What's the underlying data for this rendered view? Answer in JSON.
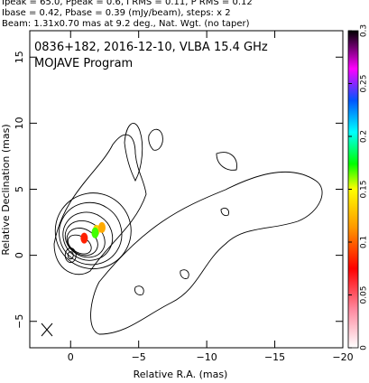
{
  "header": {
    "line1": "Ipeak = 65.0, Ppeak = 0.6, I RMS = 0.11, P RMS = 0.12",
    "line2": "Ibase = 0.42, Pbase = 0.39 (mJy/beam), steps: x 2",
    "line3": "Beam: 1.31x0.70 mas at 9.2 deg., Nat. Wgt. (no taper)"
  },
  "chart_data": {
    "type": "contour",
    "title_line1": "0836+182, 2016-12-10, VLBA 15.4 GHz",
    "title_line2": "MOJAVE Program",
    "xlabel": "Relative R.A. (mas)",
    "ylabel": "Relative Declination (mas)",
    "xlim": [
      3,
      -20
    ],
    "ylim": [
      -7,
      17
    ],
    "x_ticks": [
      0,
      -5,
      -10,
      -15,
      -20
    ],
    "x_tick_labels": [
      "0",
      "−5",
      "−10",
      "−15",
      "−20"
    ],
    "y_ticks": [
      -5,
      0,
      5,
      10,
      15
    ],
    "y_tick_labels": [
      "−5",
      "0",
      "5",
      "10",
      "15"
    ],
    "colorbar": {
      "min": 0,
      "max": 0.3,
      "ticks": [
        "0",
        "0.05",
        "0.1",
        "0.15",
        "0.2",
        "0.25",
        "0.3"
      ],
      "colors": [
        "#ffffff",
        "#ff0000",
        "#ff8800",
        "#ffff00",
        "#00ff00",
        "#00ffff",
        "#0000ff",
        "#ff00ff",
        "#000000"
      ]
    },
    "core": {
      "x": 0,
      "y": 0
    },
    "polarized_blobs": [
      {
        "x": -1.0,
        "y": 1.3,
        "color": "#ff2000"
      },
      {
        "x": -1.9,
        "y": 1.9,
        "color": "#ffd000"
      },
      {
        "x": -2.3,
        "y": 2.1,
        "color": "#ffaa00"
      },
      {
        "x": -1.8,
        "y": 1.7,
        "color": "#40ff00"
      }
    ]
  }
}
